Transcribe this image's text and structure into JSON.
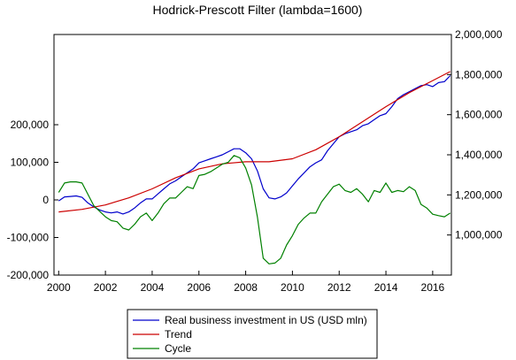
{
  "chart_data": {
    "type": "line",
    "title": "Hodrick-Prescott Filter (lambda=1600)",
    "xlabel": "",
    "ylabel": "",
    "xlim": [
      1999.8,
      2016.8
    ],
    "x_ticks": [
      2000,
      2002,
      2004,
      2006,
      2008,
      2010,
      2012,
      2014,
      2016
    ],
    "left_axis": {
      "ylim": [
        -200000,
        440000
      ],
      "ticks": [
        -200000,
        -100000,
        0,
        100000,
        200000
      ],
      "tick_labels": [
        "-200,000",
        "-100,000",
        "0",
        "100,000",
        "200,000"
      ]
    },
    "right_axis": {
      "ylim": [
        800000,
        2000000
      ],
      "ticks": [
        1000000,
        1200000,
        1400000,
        1600000,
        1800000,
        2000000
      ],
      "tick_labels": [
        "1,000,000",
        "1,200,000",
        "1,400,000",
        "1,600,000",
        "1,800,000",
        "2,000,000"
      ]
    },
    "grid": false,
    "legend_position": "bottom",
    "series": [
      {
        "name": "Real business investment in US (USD mln)",
        "axis": "right",
        "color": "#0000cc",
        "points": [
          [
            2000.0,
            1170000
          ],
          [
            2000.25,
            1190000
          ],
          [
            2000.5,
            1192000
          ],
          [
            2000.75,
            1195000
          ],
          [
            2001.0,
            1188000
          ],
          [
            2001.25,
            1160000
          ],
          [
            2001.5,
            1140000
          ],
          [
            2001.75,
            1125000
          ],
          [
            2002.0,
            1115000
          ],
          [
            2002.25,
            1110000
          ],
          [
            2002.5,
            1115000
          ],
          [
            2002.75,
            1105000
          ],
          [
            2003.0,
            1115000
          ],
          [
            2003.25,
            1135000
          ],
          [
            2003.5,
            1160000
          ],
          [
            2003.75,
            1180000
          ],
          [
            2004.0,
            1180000
          ],
          [
            2004.25,
            1205000
          ],
          [
            2004.5,
            1230000
          ],
          [
            2004.75,
            1255000
          ],
          [
            2005.0,
            1270000
          ],
          [
            2005.25,
            1290000
          ],
          [
            2005.5,
            1310000
          ],
          [
            2005.75,
            1330000
          ],
          [
            2006.0,
            1360000
          ],
          [
            2006.25,
            1370000
          ],
          [
            2006.5,
            1380000
          ],
          [
            2006.75,
            1390000
          ],
          [
            2007.0,
            1400000
          ],
          [
            2007.25,
            1415000
          ],
          [
            2007.5,
            1430000
          ],
          [
            2007.75,
            1430000
          ],
          [
            2008.0,
            1410000
          ],
          [
            2008.25,
            1380000
          ],
          [
            2008.5,
            1320000
          ],
          [
            2008.75,
            1230000
          ],
          [
            2009.0,
            1185000
          ],
          [
            2009.25,
            1180000
          ],
          [
            2009.5,
            1190000
          ],
          [
            2009.75,
            1210000
          ],
          [
            2010.0,
            1245000
          ],
          [
            2010.25,
            1280000
          ],
          [
            2010.5,
            1310000
          ],
          [
            2010.75,
            1340000
          ],
          [
            2011.0,
            1360000
          ],
          [
            2011.25,
            1375000
          ],
          [
            2011.5,
            1420000
          ],
          [
            2011.75,
            1455000
          ],
          [
            2012.0,
            1490000
          ],
          [
            2012.25,
            1505000
          ],
          [
            2012.5,
            1515000
          ],
          [
            2012.75,
            1525000
          ],
          [
            2013.0,
            1545000
          ],
          [
            2013.25,
            1555000
          ],
          [
            2013.5,
            1575000
          ],
          [
            2013.75,
            1595000
          ],
          [
            2014.0,
            1605000
          ],
          [
            2014.25,
            1640000
          ],
          [
            2014.5,
            1680000
          ],
          [
            2014.75,
            1700000
          ],
          [
            2015.0,
            1715000
          ],
          [
            2015.25,
            1730000
          ],
          [
            2015.5,
            1745000
          ],
          [
            2015.75,
            1750000
          ],
          [
            2016.0,
            1740000
          ],
          [
            2016.25,
            1760000
          ],
          [
            2016.5,
            1765000
          ],
          [
            2016.75,
            1795000
          ]
        ]
      },
      {
        "name": "Trend",
        "axis": "right",
        "color": "#cc0000",
        "points": [
          [
            2000.0,
            1115000
          ],
          [
            2001.0,
            1128000
          ],
          [
            2002.0,
            1150000
          ],
          [
            2003.0,
            1185000
          ],
          [
            2004.0,
            1230000
          ],
          [
            2005.0,
            1285000
          ],
          [
            2006.0,
            1330000
          ],
          [
            2007.0,
            1355000
          ],
          [
            2008.0,
            1365000
          ],
          [
            2009.0,
            1365000
          ],
          [
            2010.0,
            1380000
          ],
          [
            2011.0,
            1425000
          ],
          [
            2012.0,
            1490000
          ],
          [
            2013.0,
            1565000
          ],
          [
            2014.0,
            1640000
          ],
          [
            2015.0,
            1710000
          ],
          [
            2016.0,
            1770000
          ],
          [
            2016.75,
            1815000
          ]
        ]
      },
      {
        "name": "Cycle",
        "axis": "left",
        "color": "#008000",
        "points": [
          [
            2000.0,
            20000
          ],
          [
            2000.25,
            45000
          ],
          [
            2000.5,
            48000
          ],
          [
            2000.75,
            48000
          ],
          [
            2001.0,
            45000
          ],
          [
            2001.25,
            15000
          ],
          [
            2001.5,
            -15000
          ],
          [
            2001.75,
            -30000
          ],
          [
            2002.0,
            -45000
          ],
          [
            2002.25,
            -55000
          ],
          [
            2002.5,
            -58000
          ],
          [
            2002.75,
            -75000
          ],
          [
            2003.0,
            -80000
          ],
          [
            2003.25,
            -65000
          ],
          [
            2003.5,
            -45000
          ],
          [
            2003.75,
            -35000
          ],
          [
            2004.0,
            -55000
          ],
          [
            2004.25,
            -35000
          ],
          [
            2004.5,
            -10000
          ],
          [
            2004.75,
            5000
          ],
          [
            2005.0,
            5000
          ],
          [
            2005.25,
            20000
          ],
          [
            2005.5,
            35000
          ],
          [
            2005.75,
            30000
          ],
          [
            2006.0,
            65000
          ],
          [
            2006.25,
            68000
          ],
          [
            2006.5,
            75000
          ],
          [
            2006.75,
            85000
          ],
          [
            2007.0,
            95000
          ],
          [
            2007.25,
            100000
          ],
          [
            2007.5,
            118000
          ],
          [
            2007.75,
            112000
          ],
          [
            2008.0,
            85000
          ],
          [
            2008.25,
            40000
          ],
          [
            2008.5,
            -45000
          ],
          [
            2008.75,
            -155000
          ],
          [
            2009.0,
            -170000
          ],
          [
            2009.25,
            -168000
          ],
          [
            2009.5,
            -155000
          ],
          [
            2009.75,
            -120000
          ],
          [
            2010.0,
            -95000
          ],
          [
            2010.25,
            -65000
          ],
          [
            2010.5,
            -48000
          ],
          [
            2010.75,
            -35000
          ],
          [
            2011.0,
            -35000
          ],
          [
            2011.25,
            -5000
          ],
          [
            2011.5,
            15000
          ],
          [
            2011.75,
            35000
          ],
          [
            2012.0,
            42000
          ],
          [
            2012.25,
            25000
          ],
          [
            2012.5,
            20000
          ],
          [
            2012.75,
            30000
          ],
          [
            2013.0,
            15000
          ],
          [
            2013.25,
            -5000
          ],
          [
            2013.5,
            25000
          ],
          [
            2013.75,
            20000
          ],
          [
            2014.0,
            45000
          ],
          [
            2014.25,
            20000
          ],
          [
            2014.5,
            25000
          ],
          [
            2014.75,
            22000
          ],
          [
            2015.0,
            35000
          ],
          [
            2015.25,
            25000
          ],
          [
            2015.5,
            -12000
          ],
          [
            2015.75,
            -22000
          ],
          [
            2016.0,
            -38000
          ],
          [
            2016.25,
            -42000
          ],
          [
            2016.5,
            -45000
          ],
          [
            2016.75,
            -35000
          ]
        ]
      }
    ]
  }
}
